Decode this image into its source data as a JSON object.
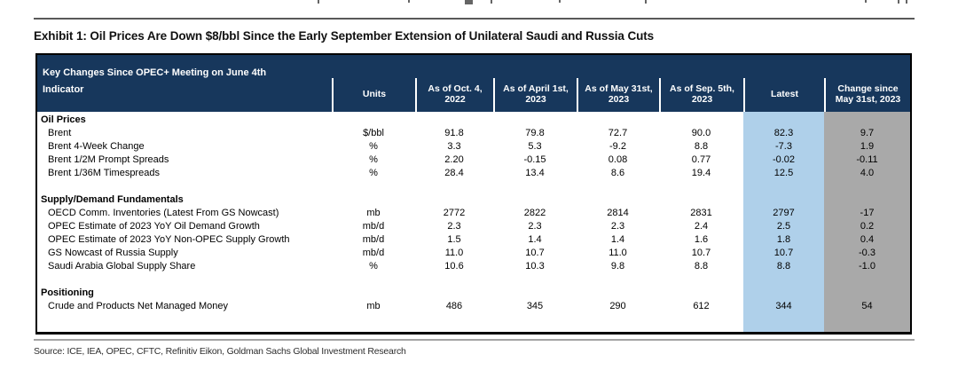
{
  "page": {
    "exhibit_title": "Exhibit 1: Oil Prices Are Down $8/bbl Since the Early September Extension of Unilateral Saudi and Russia Cuts",
    "source_line": "Source: ICE, IEA, OPEC, CFTC, Refinitiv Eikon, Goldman Sachs Global Investment Research"
  },
  "colors": {
    "header-navy": "#17375c",
    "latest-blue": "#afd0ea",
    "change-gray": "#a9a9a9"
  },
  "table": {
    "header": {
      "title_line1": "Key Changes Since OPEC+ Meeting on June 4th",
      "title_line2": "Indicator",
      "columns": [
        {
          "line1": "Units",
          "line2": ""
        },
        {
          "line1": "As of Oct. 4,",
          "line2": "2022"
        },
        {
          "line1": "As of April 1st,",
          "line2": "2023"
        },
        {
          "line1": "As of May 31st,",
          "line2": "2023"
        },
        {
          "line1": "As of Sep. 5th,",
          "line2": "2023"
        },
        {
          "line1": "Latest",
          "line2": ""
        },
        {
          "line1": "Change since",
          "line2": "May 31st, 2023"
        }
      ]
    },
    "sections": [
      {
        "label": "Oil Prices",
        "rows": [
          {
            "indicator": "Brent",
            "units": "$/bbl",
            "values": [
              "91.8",
              "79.8",
              "72.7",
              "90.0",
              "82.3",
              "9.7"
            ]
          },
          {
            "indicator": "Brent 4-Week Change",
            "units": "%",
            "values": [
              "3.3",
              "5.3",
              "-9.2",
              "8.8",
              "-7.3",
              "1.9"
            ]
          },
          {
            "indicator": "Brent 1/2M Prompt Spreads",
            "units": "%",
            "values": [
              "2.20",
              "-0.15",
              "0.08",
              "0.77",
              "-0.02",
              "-0.11"
            ]
          },
          {
            "indicator": "Brent 1/36M Timespreads",
            "units": "%",
            "values": [
              "28.4",
              "13.4",
              "8.6",
              "19.4",
              "12.5",
              "4.0"
            ]
          }
        ]
      },
      {
        "label": "Supply/Demand Fundamentals",
        "rows": [
          {
            "indicator": "OECD Comm. Inventories (Latest From GS Nowcast)",
            "units": "mb",
            "values": [
              "2772",
              "2822",
              "2814",
              "2831",
              "2797",
              "-17"
            ]
          },
          {
            "indicator": "OPEC Estimate of 2023 YoY Oil Demand Growth",
            "units": "mb/d",
            "values": [
              "2.3",
              "2.3",
              "2.3",
              "2.4",
              "2.5",
              "0.2"
            ]
          },
          {
            "indicator": "OPEC Estimate of 2023 YoY Non-OPEC Supply Growth",
            "units": "mb/d",
            "values": [
              "1.5",
              "1.4",
              "1.4",
              "1.6",
              "1.8",
              "0.4"
            ]
          },
          {
            "indicator": "GS Nowcast of Russia Supply",
            "units": "mb/d",
            "values": [
              "11.0",
              "10.7",
              "11.0",
              "10.7",
              "10.7",
              "-0.3"
            ]
          },
          {
            "indicator": "Saudi Arabia Global Supply Share",
            "units": "%",
            "values": [
              "10.6",
              "10.3",
              "9.8",
              "8.8",
              "8.8",
              "-1.0"
            ]
          }
        ]
      },
      {
        "label": "Positioning",
        "rows": [
          {
            "indicator": "Crude and Products Net Managed Money",
            "units": "mb",
            "values": [
              "486",
              "345",
              "290",
              "612",
              "344",
              "54"
            ]
          }
        ]
      }
    ]
  }
}
